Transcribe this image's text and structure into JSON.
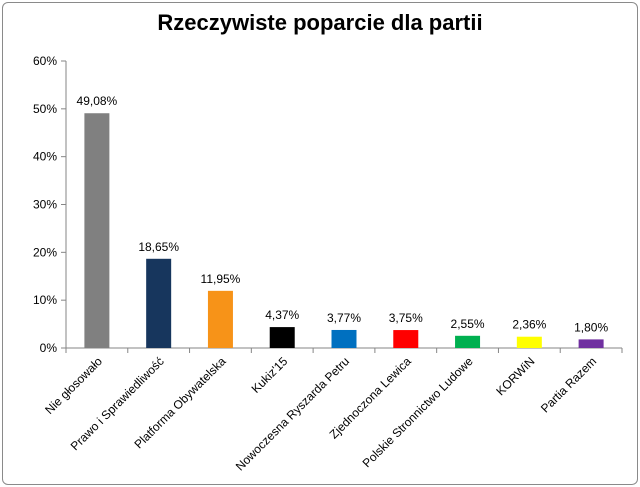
{
  "chart_data": {
    "type": "bar",
    "title": "Rzeczywiste poparcie dla partii",
    "xlabel": "",
    "ylabel": "",
    "ylim": [
      0,
      60
    ],
    "yticks": [
      "0%",
      "10%",
      "20%",
      "30%",
      "40%",
      "50%",
      "60%"
    ],
    "ytick_values": [
      0,
      10,
      20,
      30,
      40,
      50,
      60
    ],
    "grid": false,
    "legend": "none",
    "categories": [
      "Nie głosowało",
      "Prawo i Sprawiedliwość",
      "Platforma Obywatelska",
      "Kukiz'15",
      "Nowoczesna Ryszarda Petru",
      "Zjednoczona Lewica",
      "Polskie Stronnictwo Ludowe",
      "KORWiN",
      "Partia Razem"
    ],
    "values": [
      49.08,
      18.65,
      11.95,
      4.37,
      3.77,
      3.75,
      2.55,
      2.36,
      1.8
    ],
    "data_labels": [
      "49,08%",
      "18,65%",
      "11,95%",
      "4,37%",
      "3,77%",
      "3,75%",
      "2,55%",
      "2,36%",
      "1,80%"
    ],
    "colors": [
      "#808080",
      "#17365d",
      "#f79318",
      "#000000",
      "#0070c0",
      "#ff0000",
      "#00b050",
      "#ffff00",
      "#7030a0"
    ]
  }
}
